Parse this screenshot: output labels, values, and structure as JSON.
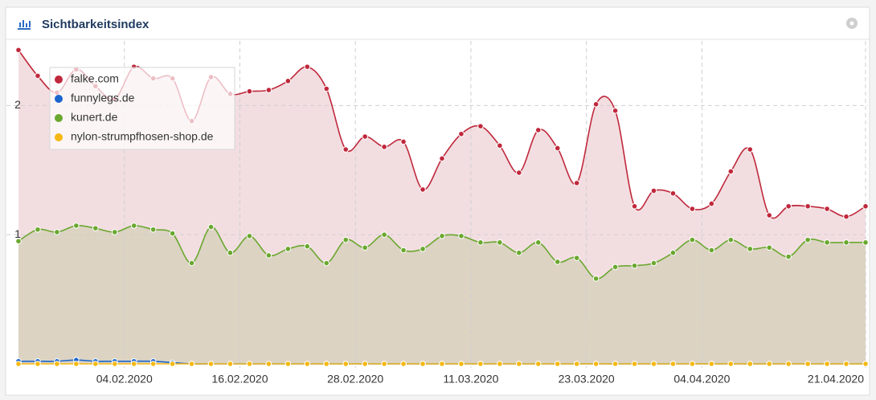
{
  "chart_data": {
    "type": "line",
    "title": "Sichtbarkeitsindex",
    "x": [
      "24.01.2020",
      "26.01.2020",
      "28.01.2020",
      "30.01.2020",
      "01.02.2020",
      "03.02.2020",
      "05.02.2020",
      "07.02.2020",
      "09.02.2020",
      "11.02.2020",
      "13.02.2020",
      "15.02.2020",
      "17.02.2020",
      "19.02.2020",
      "21.02.2020",
      "23.02.2020",
      "25.02.2020",
      "27.02.2020",
      "29.02.2020",
      "02.03.2020",
      "04.03.2020",
      "06.03.2020",
      "08.03.2020",
      "10.03.2020",
      "12.03.2020",
      "14.03.2020",
      "16.03.2020",
      "18.03.2020",
      "20.03.2020",
      "22.03.2020",
      "24.03.2020",
      "26.03.2020",
      "28.03.2020",
      "30.03.2020",
      "01.04.2020",
      "03.04.2020",
      "05.04.2020",
      "07.04.2020",
      "09.04.2020",
      "11.04.2020",
      "13.04.2020",
      "15.04.2020",
      "17.04.2020",
      "19.04.2020",
      "21.04.2020"
    ],
    "series": [
      {
        "name": "falke.com",
        "color": "#c0283c",
        "area_color": "#f1dade",
        "values": [
          2.43,
          2.23,
          2.1,
          2.28,
          2.15,
          2.05,
          2.3,
          2.21,
          2.21,
          1.88,
          2.22,
          2.09,
          2.11,
          2.12,
          2.19,
          2.3,
          2.13,
          1.66,
          1.76,
          1.68,
          1.72,
          1.35,
          1.59,
          1.78,
          1.84,
          1.69,
          1.48,
          1.81,
          1.67,
          1.4,
          2.01,
          1.96,
          1.22,
          1.34,
          1.32,
          1.2,
          1.24,
          1.49,
          1.66,
          1.15,
          1.22,
          1.22,
          1.2,
          1.14,
          1.22
        ]
      },
      {
        "name": "funnylegs.de",
        "color": "#1a66cc",
        "values": [
          0.02,
          0.02,
          0.02,
          0.03,
          0.02,
          0.02,
          0.02,
          0.02,
          0.01,
          0,
          0,
          0,
          0,
          0,
          0,
          0,
          0,
          0,
          0,
          0,
          0,
          0,
          0,
          0,
          0,
          0,
          0,
          0,
          0,
          0,
          0,
          0,
          0,
          0,
          0,
          0,
          0,
          0,
          0,
          0,
          0,
          0,
          0,
          0,
          0
        ]
      },
      {
        "name": "kunert.de",
        "color": "#6aa82f",
        "area_color": "#d9d2c0",
        "values": [
          0.95,
          1.04,
          1.02,
          1.07,
          1.05,
          1.02,
          1.07,
          1.04,
          1.01,
          0.78,
          1.06,
          0.86,
          0.99,
          0.84,
          0.89,
          0.91,
          0.78,
          0.96,
          0.9,
          1.0,
          0.88,
          0.89,
          0.99,
          0.99,
          0.94,
          0.94,
          0.86,
          0.94,
          0.79,
          0.82,
          0.66,
          0.75,
          0.76,
          0.78,
          0.86,
          0.96,
          0.88,
          0.96,
          0.89,
          0.9,
          0.83,
          0.96,
          0.94,
          0.94,
          0.94
        ]
      },
      {
        "name": "nylon-strumpfhosen-shop.de",
        "color": "#f5b915",
        "values": [
          0,
          0,
          0,
          0,
          0,
          0,
          0,
          0,
          0,
          0,
          0,
          0,
          0,
          0,
          0,
          0,
          0,
          0,
          0,
          0,
          0,
          0,
          0,
          0,
          0,
          0,
          0,
          0,
          0,
          0,
          0,
          0,
          0,
          0,
          0,
          0,
          0,
          0,
          0,
          0,
          0,
          0,
          0,
          0,
          0
        ]
      }
    ],
    "xlim": [
      "23.01.2020",
      "21.04.2020"
    ],
    "xticks": [
      "04.02.2020",
      "16.02.2020",
      "28.02.2020",
      "11.03.2020",
      "23.03.2020",
      "04.04.2020",
      "21.04.2020"
    ],
    "ylim": [
      0,
      2.5
    ],
    "yticks": [
      1,
      2
    ],
    "grid": true
  }
}
